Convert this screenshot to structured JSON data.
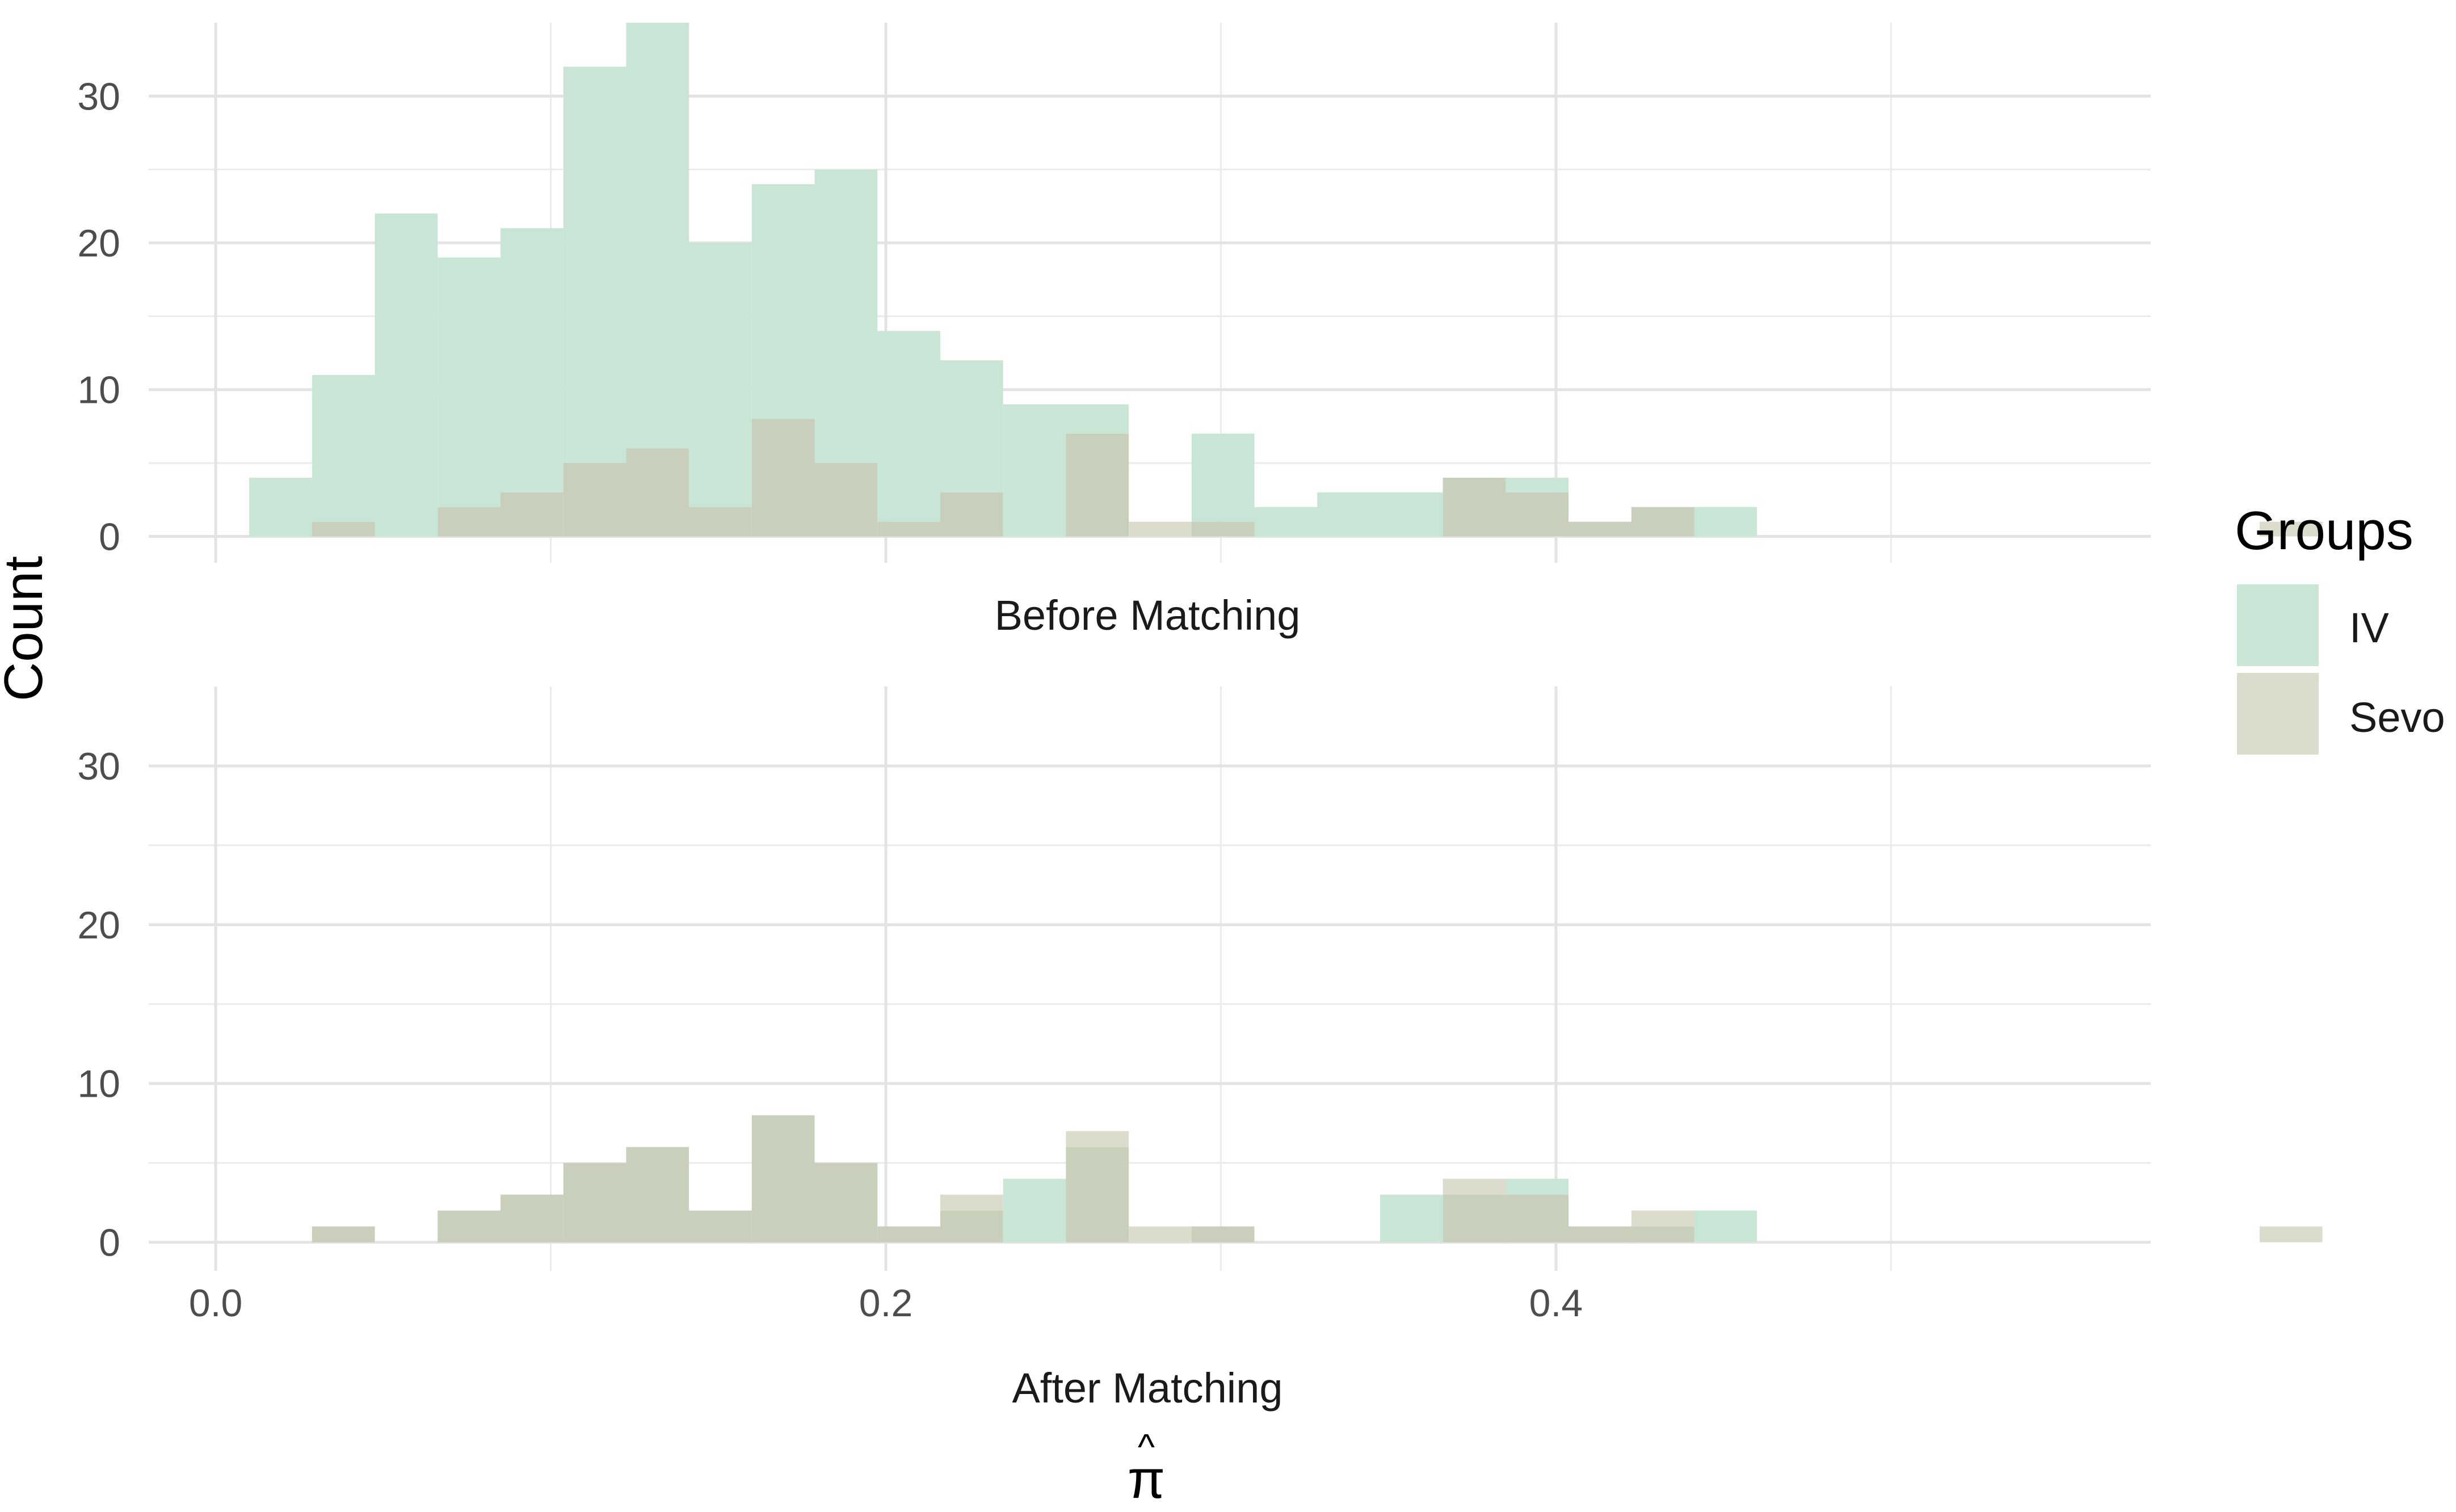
{
  "chart_data": {
    "type": "bar",
    "subtype": "overlapping histogram, faceted",
    "ylabel": "Count",
    "xlabel_symbol": "π",
    "xlabel_accent": "^",
    "legend": {
      "title": "Groups",
      "position": "right",
      "entries": [
        {
          "name": "IV",
          "color": "#c9e5d6"
        },
        {
          "name": "Sevo",
          "color": "#dcdccc"
        }
      ]
    },
    "overlap_color": "#c8cfbb",
    "grid": true,
    "bin_start": 0.01,
    "bin_width": 0.01875,
    "xlim": [
      -0.02,
      0.5775
    ],
    "ylim": [
      -1.8,
      35
    ],
    "x_ticks": [
      0.0,
      0.2,
      0.4
    ],
    "x_tick_labels": [
      "0.0",
      "0.2",
      "0.4"
    ],
    "y_ticks": [
      0,
      10,
      20,
      30
    ],
    "y_tick_labels": [
      "0",
      "10",
      "20",
      "30"
    ],
    "panels": [
      {
        "strip_label": "Before Matching",
        "series": [
          {
            "name": "IV",
            "values": [
              4,
              11,
              22,
              19,
              21,
              32,
              35,
              20,
              24,
              25,
              14,
              12,
              9,
              9,
              0,
              7,
              2,
              3,
              3,
              4,
              4,
              1,
              2,
              2,
              0,
              0,
              0,
              0,
              0,
              0,
              0,
              0,
              0
            ]
          },
          {
            "name": "Sevo",
            "values": [
              0,
              1,
              0,
              2,
              3,
              5,
              6,
              2,
              8,
              5,
              1,
              3,
              0,
              7,
              1,
              1,
              0,
              0,
              0,
              4,
              3,
              1,
              2,
              0,
              0,
              0,
              0,
              0,
              0,
              0,
              0,
              0,
              1
            ]
          }
        ]
      },
      {
        "strip_label": "After Matching",
        "series": [
          {
            "name": "IV",
            "values": [
              0,
              1,
              0,
              2,
              3,
              5,
              6,
              2,
              8,
              5,
              1,
              2,
              4,
              6,
              0,
              1,
              0,
              0,
              3,
              3,
              4,
              1,
              1,
              2,
              0,
              0,
              0,
              0,
              0,
              0,
              0,
              0,
              0
            ]
          },
          {
            "name": "Sevo",
            "values": [
              0,
              1,
              0,
              2,
              3,
              5,
              6,
              2,
              8,
              5,
              1,
              3,
              0,
              7,
              1,
              1,
              0,
              0,
              0,
              4,
              3,
              1,
              2,
              0,
              0,
              0,
              0,
              0,
              0,
              0,
              0,
              0,
              1
            ]
          }
        ]
      }
    ]
  }
}
